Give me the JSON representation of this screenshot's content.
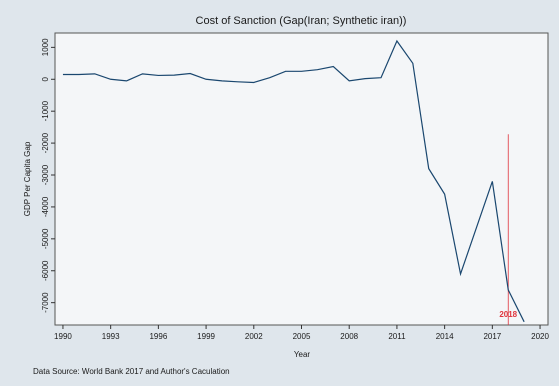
{
  "chart_data": {
    "type": "line",
    "title": "Cost of Sanction (Gap(Iran; Synthetic iran))",
    "x_label": "Year",
    "y_label": "GDP Per Capita Gap",
    "source_note": "Data Source: World Bank 2017 and Author's Caculation",
    "x": [
      1990,
      1991,
      1992,
      1993,
      1994,
      1995,
      1996,
      1997,
      1998,
      1999,
      2000,
      2001,
      2002,
      2003,
      2004,
      2005,
      2006,
      2007,
      2008,
      2009,
      2010,
      2011,
      2012,
      2013,
      2014,
      2015,
      2016,
      2017,
      2018,
      2019
    ],
    "series": [
      {
        "name": "Gap",
        "color": "#1a476f",
        "values": [
          150,
          150,
          170,
          0,
          -50,
          170,
          120,
          130,
          180,
          0,
          -50,
          -80,
          -100,
          50,
          250,
          250,
          300,
          400,
          -50,
          20,
          50,
          1200,
          500,
          -2800,
          -3600,
          -6100,
          -4650,
          -3200,
          -6600,
          -7600
        ]
      }
    ],
    "xlim": [
      1989.5,
      2020.5
    ],
    "ylim": [
      -7700,
      1450
    ],
    "xticks": [
      1990,
      1993,
      1996,
      1999,
      2002,
      2005,
      2008,
      2011,
      2014,
      2017,
      2020
    ],
    "yticks": [
      1000,
      0,
      -1000,
      -2000,
      -3000,
      -4000,
      -5000,
      -6000,
      -7000
    ],
    "annotations": [
      {
        "x": 2018,
        "text": "2018",
        "color": "#e0343c"
      }
    ],
    "grid": false
  }
}
